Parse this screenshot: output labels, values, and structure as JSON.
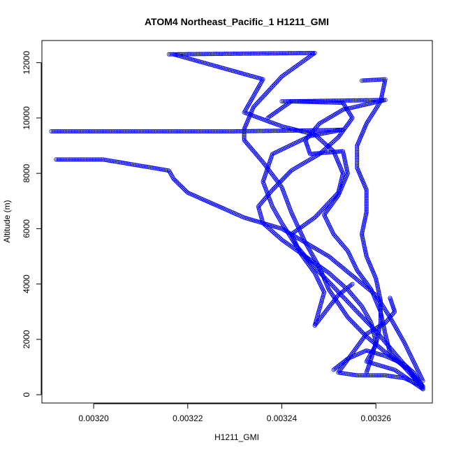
{
  "chart_data": {
    "type": "scatter",
    "title": "ATOM4 Northeast_Pacific_1 H1211_GMI",
    "xlabel": "H1211_GMI",
    "ylabel": "Altitude (m)",
    "xlim": [
      0.003189,
      0.003272
    ],
    "ylim": [
      -300,
      12800
    ],
    "xticks": [
      0.0032,
      0.00322,
      0.00324,
      0.00326
    ],
    "xtick_labels": [
      "0.00320",
      "0.00322",
      "0.00324",
      "0.00326"
    ],
    "yticks": [
      0,
      2000,
      4000,
      6000,
      8000,
      10000,
      12000
    ],
    "ytick_labels": [
      "0",
      "2000",
      "4000",
      "6000",
      "8000",
      "10000",
      "12000"
    ],
    "grid": false,
    "marker": "open-circle",
    "series": [
      {
        "color": "#0000ff",
        "segments": [
          [
            [
              0.003216,
              12300
            ],
            [
              0.003247,
              12350
            ],
            [
              0.00324,
              11500
            ],
            [
              0.003234,
              10400
            ],
            [
              0.003232,
              9600
            ],
            [
              0.003232,
              9200
            ],
            [
              0.003236,
              8400
            ],
            [
              0.00324,
              7500
            ],
            [
              0.003242,
              6600
            ],
            [
              0.003245,
              5500
            ],
            [
              0.003248,
              4600
            ],
            [
              0.00325,
              3800
            ],
            [
              0.003254,
              2800
            ],
            [
              0.003258,
              2100
            ],
            [
              0.003263,
              1400
            ],
            [
              0.003267,
              900
            ],
            [
              0.00327,
              200
            ]
          ],
          [
            [
              0.003191,
              9520
            ],
            [
              0.00323,
              9520
            ],
            [
              0.00325,
              9560
            ],
            [
              0.003253,
              9580
            ],
            [
              0.003246,
              9350
            ],
            [
              0.003238,
              8700
            ],
            [
              0.003236,
              7700
            ],
            [
              0.003238,
              6800
            ],
            [
              0.00324,
              6200
            ],
            [
              0.003243,
              5400
            ],
            [
              0.003247,
              4600
            ],
            [
              0.003251,
              3900
            ],
            [
              0.003256,
              3000
            ],
            [
              0.00326,
              2300
            ],
            [
              0.003263,
              1700
            ],
            [
              0.003266,
              1100
            ],
            [
              0.00327,
              300
            ]
          ],
          [
            [
              0.003192,
              8500
            ],
            [
              0.003202,
              8500
            ],
            [
              0.003216,
              8100
            ],
            [
              0.003217,
              7800
            ],
            [
              0.00322,
              7300
            ],
            [
              0.003228,
              6700
            ],
            [
              0.003232,
              6400
            ],
            [
              0.00324,
              6000
            ],
            [
              0.003245,
              5500
            ],
            [
              0.00325,
              5000
            ],
            [
              0.003255,
              4300
            ],
            [
              0.00326,
              3600
            ],
            [
              0.003263,
              2800
            ],
            [
              0.003266,
              1900
            ],
            [
              0.003268,
              1200
            ],
            [
              0.00327,
              500
            ]
          ],
          [
            [
              0.00324,
              10600
            ],
            [
              0.003262,
              10650
            ],
            [
              0.003253,
              10300
            ],
            [
              0.003248,
              9800
            ],
            [
              0.003245,
              9200
            ],
            [
              0.003246,
              8700
            ],
            [
              0.003253,
              8800
            ],
            [
              0.003254,
              8000
            ],
            [
              0.003252,
              7200
            ],
            [
              0.003249,
              6500
            ],
            [
              0.003251,
              5800
            ],
            [
              0.003254,
              5200
            ],
            [
              0.003256,
              4500
            ],
            [
              0.003259,
              3800
            ],
            [
              0.003261,
              3000
            ],
            [
              0.003262,
              2200
            ],
            [
              0.003263,
              1500
            ],
            [
              0.003266,
              1000
            ],
            [
              0.00327,
              250
            ]
          ],
          [
            [
              0.003257,
              11350
            ],
            [
              0.003262,
              11400
            ],
            [
              0.003261,
              10600
            ],
            [
              0.003258,
              9800
            ],
            [
              0.003256,
              9000
            ],
            [
              0.003256,
              8200
            ],
            [
              0.003258,
              7400
            ],
            [
              0.003258,
              6600
            ],
            [
              0.003257,
              5800
            ],
            [
              0.003258,
              5000
            ],
            [
              0.00326,
              4200
            ],
            [
              0.003261,
              3400
            ],
            [
              0.003261,
              2600
            ],
            [
              0.00326,
              1800
            ],
            [
              0.003258,
              1200
            ],
            [
              0.003264,
              900
            ],
            [
              0.00327,
              200
            ]
          ],
          [
            [
              0.003237,
              10000
            ],
            [
              0.003242,
              10600
            ],
            [
              0.003253,
              10550
            ],
            [
              0.003255,
              10000
            ],
            [
              0.003252,
              9300
            ],
            [
              0.003248,
              8700
            ],
            [
              0.003242,
              8100
            ],
            [
              0.003238,
              7400
            ],
            [
              0.003235,
              6800
            ],
            [
              0.003236,
              6200
            ],
            [
              0.00324,
              5600
            ],
            [
              0.003245,
              5000
            ],
            [
              0.00325,
              4400
            ],
            [
              0.003254,
              3800
            ],
            [
              0.003257,
              3200
            ],
            [
              0.003259,
              2600
            ],
            [
              0.00326,
              1900
            ],
            [
              0.003259,
              1300
            ],
            [
              0.003258,
              800
            ]
          ],
          [
            [
              0.003217,
              12300
            ],
            [
              0.003236,
              11400
            ],
            [
              0.003232,
              10200
            ],
            [
              0.00324,
              9700
            ],
            [
              0.003247,
              9400
            ],
            [
              0.003251,
              8800
            ],
            [
              0.003253,
              8000
            ],
            [
              0.003252,
              7300
            ],
            [
              0.003247,
              6400
            ],
            [
              0.003242,
              5800
            ],
            [
              0.003244,
              5100
            ],
            [
              0.003247,
              4400
            ],
            [
              0.003249,
              3700
            ],
            [
              0.003247,
              2500
            ],
            [
              0.003252,
              3600
            ],
            [
              0.003255,
              4000
            ]
          ],
          [
            [
              0.003251,
              900
            ],
            [
              0.003254,
              1300
            ],
            [
              0.003258,
              1600
            ],
            [
              0.003262,
              1400
            ],
            [
              0.003266,
              1100
            ],
            [
              0.003268,
              800
            ],
            [
              0.00327,
              300
            ],
            [
              0.003266,
              600
            ],
            [
              0.003262,
              700
            ],
            [
              0.003256,
              700
            ],
            [
              0.003252,
              800
            ],
            [
              0.003258,
              2200
            ],
            [
              0.003262,
              2600
            ],
            [
              0.003264,
              3000
            ],
            [
              0.003263,
              3500
            ]
          ]
        ]
      }
    ]
  }
}
